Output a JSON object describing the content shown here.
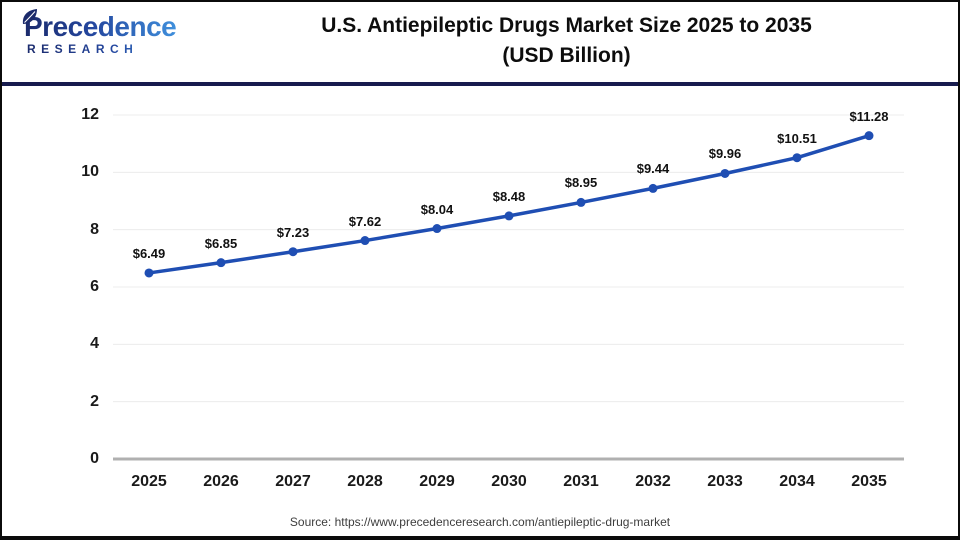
{
  "header": {
    "logo": {
      "name": "Precedence",
      "sub": "RESEARCH"
    },
    "title_line1": "U.S. Antiepileptic Drugs Market Size 2025 to 2035",
    "title_line2": "(USD Billion)"
  },
  "footer": {
    "source": "Source: https://www.precedenceresearch.com/antiepileptic-drug-market"
  },
  "colors": {
    "accent": "#1f4eb3",
    "separator": "#171b4e",
    "gridline": "#ececec",
    "axis_line": "#b0b0b0",
    "logo_navy": "#1b2a6b",
    "logo_blue": "#3f8fdc"
  },
  "chart_data": {
    "type": "line",
    "title": "U.S. Antiepileptic Drugs Market Size 2025 to 2035 (USD Billion)",
    "categories": [
      "2025",
      "2026",
      "2027",
      "2028",
      "2029",
      "2030",
      "2031",
      "2032",
      "2033",
      "2034",
      "2035"
    ],
    "values": [
      6.49,
      6.85,
      7.23,
      7.62,
      8.04,
      8.48,
      8.95,
      9.44,
      9.96,
      10.51,
      11.28
    ],
    "value_labels": [
      "$6.49",
      "$6.85",
      "$7.23",
      "$7.62",
      "$8.04",
      "$8.48",
      "$8.95",
      "$9.44",
      "$9.96",
      "$10.51",
      "$11.28"
    ],
    "unit": "USD Billion",
    "yticks": [
      0,
      2,
      4,
      6,
      8,
      10,
      12
    ],
    "ylim": [
      0,
      12
    ],
    "xlabel": "",
    "ylabel": "",
    "grid": "horizontal",
    "legend": "none",
    "marker": "circle"
  }
}
